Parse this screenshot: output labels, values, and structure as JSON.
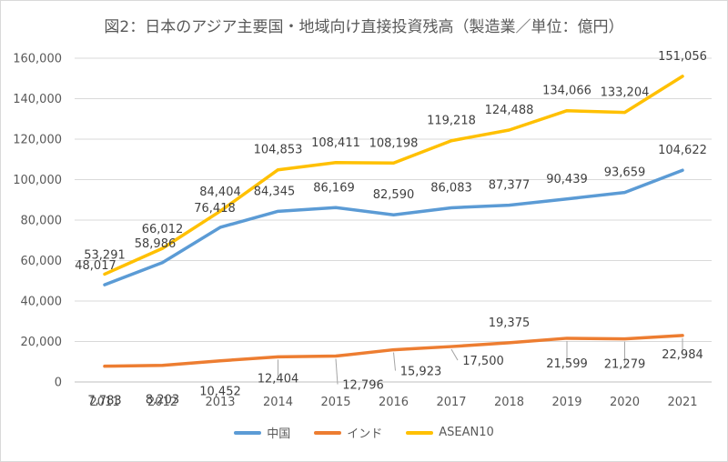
{
  "chart_data": {
    "type": "line",
    "title": "図2：日本のアジア主要国・地域向け直接投資残高（製造業／単位：億円）",
    "categories": [
      "2011",
      "2012",
      "2013",
      "2014",
      "2015",
      "2016",
      "2017",
      "2018",
      "2019",
      "2020",
      "2021"
    ],
    "ylim": [
      0,
      160000
    ],
    "yticks": [
      0,
      20000,
      40000,
      60000,
      80000,
      100000,
      120000,
      140000,
      160000
    ],
    "ytick_labels": [
      "0",
      "20,000",
      "40,000",
      "60,000",
      "80,000",
      "100,000",
      "120,000",
      "140,000",
      "160,000"
    ],
    "grid": true,
    "legend_position": "bottom",
    "series": [
      {
        "name": "中国",
        "color": "#5b9bd5",
        "values": [
          48017,
          58986,
          76418,
          84345,
          86169,
          82590,
          86083,
          87377,
          90439,
          93659,
          104622
        ],
        "labels": [
          "48,017",
          "58,986",
          "76,418",
          "84,345",
          "86,169",
          "82,590",
          "86,083",
          "87,377",
          "90,439",
          "93,659",
          "104,622"
        ]
      },
      {
        "name": "インド",
        "color": "#ed7d31",
        "values": [
          7783,
          8203,
          10452,
          12404,
          12796,
          15923,
          17500,
          19375,
          21599,
          21279,
          22984
        ],
        "labels": [
          "7,783",
          "8,203",
          "10,452",
          "12,404",
          "12,796",
          "15,923",
          "17,500",
          "19,375",
          "21,599",
          "21,279",
          "22,984"
        ]
      },
      {
        "name": "ASEAN10",
        "color": "#ffc000",
        "values": [
          53291,
          66012,
          84404,
          104853,
          108411,
          108198,
          119218,
          124488,
          134066,
          133204,
          151056
        ],
        "labels": [
          "53,291",
          "66,012",
          "84,404",
          "104,853",
          "108,411",
          "108,198",
          "119,218",
          "124,488",
          "134,066",
          "133,204",
          "151,056"
        ]
      }
    ]
  }
}
